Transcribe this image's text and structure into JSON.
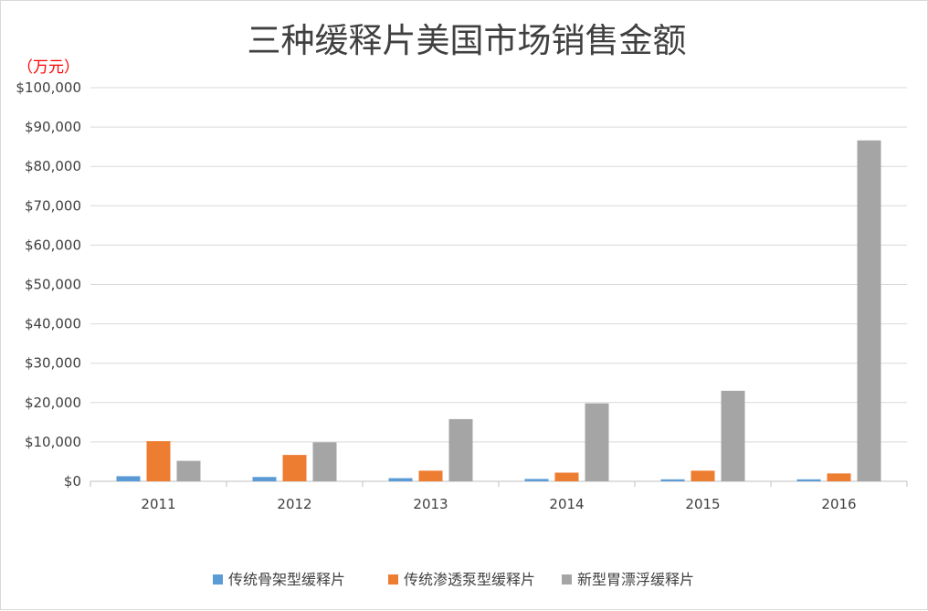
{
  "chart_data": {
    "type": "bar",
    "title": "三种缓释片美国市场销售金额",
    "unit_label": "（万元）",
    "categories": [
      "2011",
      "2012",
      "2013",
      "2014",
      "2015",
      "2016"
    ],
    "series": [
      {
        "name": "传统骨架型缓释片",
        "color": "#5b9bd5",
        "values": [
          1300,
          1100,
          800,
          600,
          500,
          500
        ]
      },
      {
        "name": "传统渗透泵型缓释片",
        "color": "#ed7d31",
        "values": [
          10200,
          6700,
          2700,
          2200,
          2700,
          2000
        ]
      },
      {
        "name": "新型胃漂浮缓释片",
        "color": "#a5a5a5",
        "values": [
          5200,
          9900,
          15800,
          19800,
          23000,
          86600
        ]
      }
    ],
    "ylim": [
      0,
      100000
    ],
    "yticks": [
      "$0",
      "$10,000",
      "$20,000",
      "$30,000",
      "$40,000",
      "$50,000",
      "$60,000",
      "$70,000",
      "$80,000",
      "$90,000",
      "$100,000"
    ],
    "ytick_step": 10000,
    "grid": true,
    "legend_position": "bottom",
    "colors": {
      "unit_label": "#ff0000",
      "grid": "#d9d9d9",
      "axis": "#bfbfbf"
    }
  }
}
